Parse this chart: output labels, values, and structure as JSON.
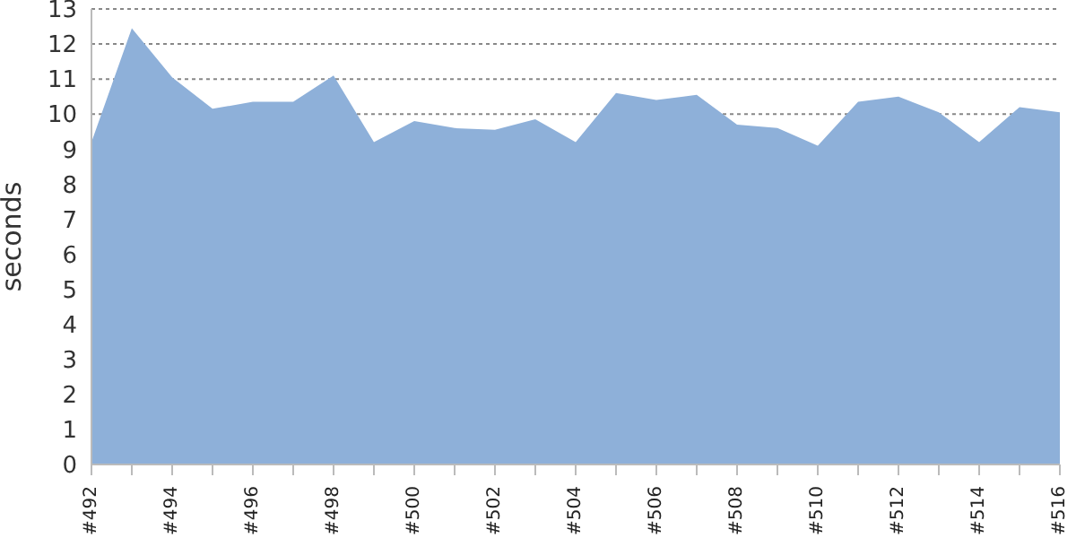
{
  "chart_data": {
    "type": "area",
    "ylabel": "seconds",
    "categories": [
      "#492",
      null,
      "#494",
      null,
      "#496",
      null,
      "#498",
      null,
      "#500",
      null,
      "#502",
      null,
      "#504",
      null,
      "#506",
      null,
      "#508",
      null,
      "#510",
      null,
      "#512",
      null,
      "#514",
      null,
      "#516"
    ],
    "series": [
      {
        "color": "#8eb0d9",
        "values": [
          9.2,
          12.45,
          11.05,
          10.15,
          10.35,
          10.35,
          11.1,
          9.2,
          9.8,
          9.6,
          9.55,
          9.85,
          9.2,
          10.6,
          10.4,
          10.55,
          9.7,
          9.6,
          9.1,
          10.35,
          10.5,
          10.05,
          9.2,
          10.2,
          10.05
        ]
      }
    ],
    "ylim": [
      0,
      13
    ],
    "yticks": [
      0,
      1,
      2,
      3,
      4,
      5,
      6,
      7,
      8,
      9,
      10,
      11,
      12,
      13
    ],
    "grid": "y"
  }
}
